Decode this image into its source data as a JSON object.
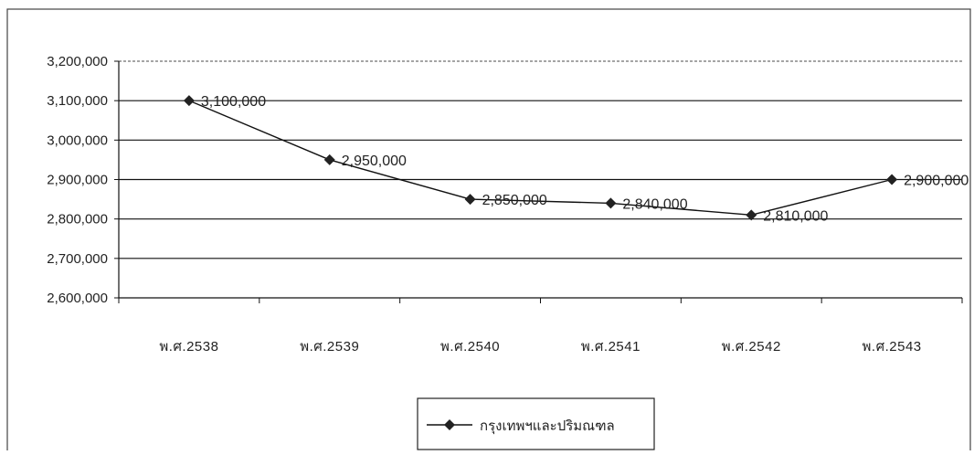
{
  "chart_data": {
    "type": "line",
    "title": "",
    "xlabel": "",
    "ylabel": "",
    "categories": [
      "พ.ศ.2538",
      "พ.ศ.2539",
      "พ.ศ.2540",
      "พ.ศ.2541",
      "พ.ศ.2542",
      "พ.ศ.2543"
    ],
    "series": [
      {
        "name": "กรุงเทพฯและปริมณฑล",
        "values": [
          3100000,
          2950000,
          2850000,
          2840000,
          2810000,
          2900000
        ],
        "data_labels": [
          "3,100,000",
          "2,950,000",
          "2,850,000",
          "2,840,000",
          "2,810,000",
          "2,900,000"
        ]
      }
    ],
    "yticks": [
      "2,600,000",
      "2,700,000",
      "2,800,000",
      "2,900,000",
      "3,000,000",
      "3,100,000",
      "3,200,000"
    ],
    "ylim": [
      2600000,
      3200000
    ],
    "grid": true,
    "legend_position": "bottom",
    "colors": {
      "line": "#111111",
      "grid": "#111111",
      "marker": "#222222"
    }
  }
}
